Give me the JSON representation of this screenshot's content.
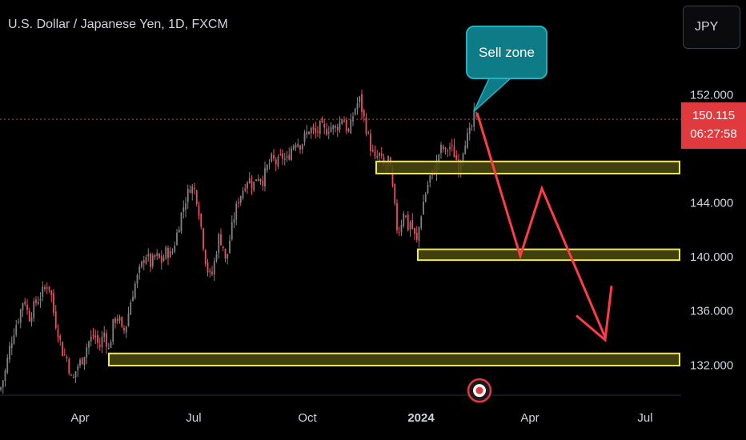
{
  "header": {
    "symbol_title": "U.S. Dollar / Japanese Yen, 1D, FXCM",
    "currency_button": "JPY"
  },
  "annotations": {
    "bubble_text": "Sell zone"
  },
  "price_tag": {
    "price": "150.115",
    "countdown": "06:27:58"
  },
  "colors": {
    "background": "#000000",
    "up_candle": "#808285",
    "down_candle": "#ef4e5a",
    "zone_fill": "#4a4a12",
    "zone_border": "#f2e84a",
    "arrow": "#ff3b46",
    "bubble": "#0e7c86",
    "price_line": "#e03a3e"
  },
  "chart_data": {
    "type": "candlestick",
    "title": "U.S. Dollar / Japanese Yen, 1D, FXCM",
    "y_axis": {
      "ticks": [
        "152.000",
        "144.000",
        "140.000",
        "136.000",
        "132.000"
      ],
      "range": [
        129.5,
        154.5
      ],
      "position": "right"
    },
    "x_axis": {
      "ticks": [
        "Apr",
        "Jul",
        "Oct",
        "2024",
        "Apr",
        "Jul"
      ]
    },
    "last_price": 150.115,
    "series": [
      {
        "path": [
          [
            0,
            130.1
          ],
          [
            6,
            131.3
          ],
          [
            12,
            133.2
          ],
          [
            18,
            134.6
          ],
          [
            24,
            135.6
          ],
          [
            30,
            137.0
          ],
          [
            36,
            135.4
          ],
          [
            44,
            136.5
          ],
          [
            52,
            137.2
          ],
          [
            58,
            137.9
          ],
          [
            63,
            137.6
          ],
          [
            68,
            135.4
          ],
          [
            73,
            134.3
          ],
          [
            78,
            132.9
          ],
          [
            84,
            132.4
          ],
          [
            90,
            130.6
          ],
          [
            96,
            131.8
          ],
          [
            103,
            132.4
          ],
          [
            110,
            133.6
          ],
          [
            118,
            134.2
          ],
          [
            124,
            133.2
          ],
          [
            130,
            134.4
          ],
          [
            136,
            133.0
          ],
          [
            142,
            135.2
          ],
          [
            148,
            135.6
          ],
          [
            153,
            134.2
          ],
          [
            158,
            135.0
          ],
          [
            163,
            136.6
          ],
          [
            168,
            137.8
          ],
          [
            175,
            139.0
          ],
          [
            182,
            140.2
          ],
          [
            188,
            139.4
          ],
          [
            195,
            140.0
          ],
          [
            202,
            139.6
          ],
          [
            208,
            140.4
          ],
          [
            214,
            140.0
          ],
          [
            220,
            141.4
          ],
          [
            226,
            143.0
          ],
          [
            232,
            144.2
          ],
          [
            238,
            145.2
          ],
          [
            244,
            144.8
          ],
          [
            248,
            143.6
          ],
          [
            252,
            141.8
          ],
          [
            256,
            140.0
          ],
          [
            260,
            138.8
          ],
          [
            264,
            138.4
          ],
          [
            268,
            139.6
          ],
          [
            273,
            141.4
          ],
          [
            278,
            141.0
          ],
          [
            282,
            139.4
          ],
          [
            287,
            141.2
          ],
          [
            292,
            142.8
          ],
          [
            298,
            144.2
          ],
          [
            304,
            145.0
          ],
          [
            310,
            145.8
          ],
          [
            316,
            145.2
          ],
          [
            322,
            146.0
          ],
          [
            328,
            145.6
          ],
          [
            334,
            146.6
          ],
          [
            340,
            147.2
          ],
          [
            346,
            146.8
          ],
          [
            352,
            147.4
          ],
          [
            358,
            147.0
          ],
          [
            364,
            148.0
          ],
          [
            370,
            148.6
          ],
          [
            376,
            148.2
          ],
          [
            382,
            149.0
          ],
          [
            388,
            149.4
          ],
          [
            394,
            149.0
          ],
          [
            400,
            149.6
          ],
          [
            406,
            149.2
          ],
          [
            412,
            149.6
          ],
          [
            418,
            149.4
          ],
          [
            424,
            149.8
          ],
          [
            428,
            150.4
          ],
          [
            432,
            149.6
          ],
          [
            436,
            149.0
          ],
          [
            440,
            150.2
          ],
          [
            444,
            151.0
          ],
          [
            449,
            151.6
          ],
          [
            453,
            150.6
          ],
          [
            457,
            149.6
          ],
          [
            461,
            148.6
          ],
          [
            465,
            147.6
          ],
          [
            469,
            147.0
          ],
          [
            473,
            147.6
          ],
          [
            477,
            147.0
          ],
          [
            481,
            146.4
          ],
          [
            485,
            147.2
          ],
          [
            489,
            145.8
          ],
          [
            493,
            143.6
          ],
          [
            497,
            141.6
          ],
          [
            501,
            142.4
          ],
          [
            505,
            143.6
          ],
          [
            509,
            142.0
          ],
          [
            513,
            142.6
          ],
          [
            517,
            141.6
          ],
          [
            521,
            141.0
          ],
          [
            525,
            142.8
          ],
          [
            529,
            144.0
          ],
          [
            533,
            145.0
          ],
          [
            537,
            145.8
          ],
          [
            541,
            146.2
          ],
          [
            545,
            146.6
          ],
          [
            549,
            147.8
          ],
          [
            553,
            148.0
          ],
          [
            557,
            147.6
          ],
          [
            561,
            148.2
          ],
          [
            565,
            147.8
          ],
          [
            569,
            147.4
          ],
          [
            573,
            146.6
          ],
          [
            577,
            147.6
          ],
          [
            581,
            148.6
          ],
          [
            585,
            148.8
          ],
          [
            589,
            149.4
          ],
          [
            593,
            150.6
          ],
          [
            597,
            150.115
          ]
        ]
      }
    ],
    "zones": [
      {
        "low": 146.1,
        "high": 147.0,
        "x_from": 470,
        "x_to": 849
      },
      {
        "low": 139.7,
        "high": 140.5,
        "x_from": 522,
        "x_to": 849
      },
      {
        "low": 131.9,
        "high": 132.8,
        "x_from": 136,
        "x_to": 849
      }
    ],
    "projection": {
      "path": [
        [
          596,
          150.6
        ],
        [
          650,
          140.0
        ],
        [
          677,
          145.0
        ],
        [
          756,
          134.0
        ]
      ],
      "arrowhead": [
        [
          720,
          135.6
        ],
        [
          756,
          133.8
        ],
        [
          764,
          137.8
        ]
      ]
    },
    "event_marker": {
      "x": 599,
      "value": 129.7
    }
  }
}
